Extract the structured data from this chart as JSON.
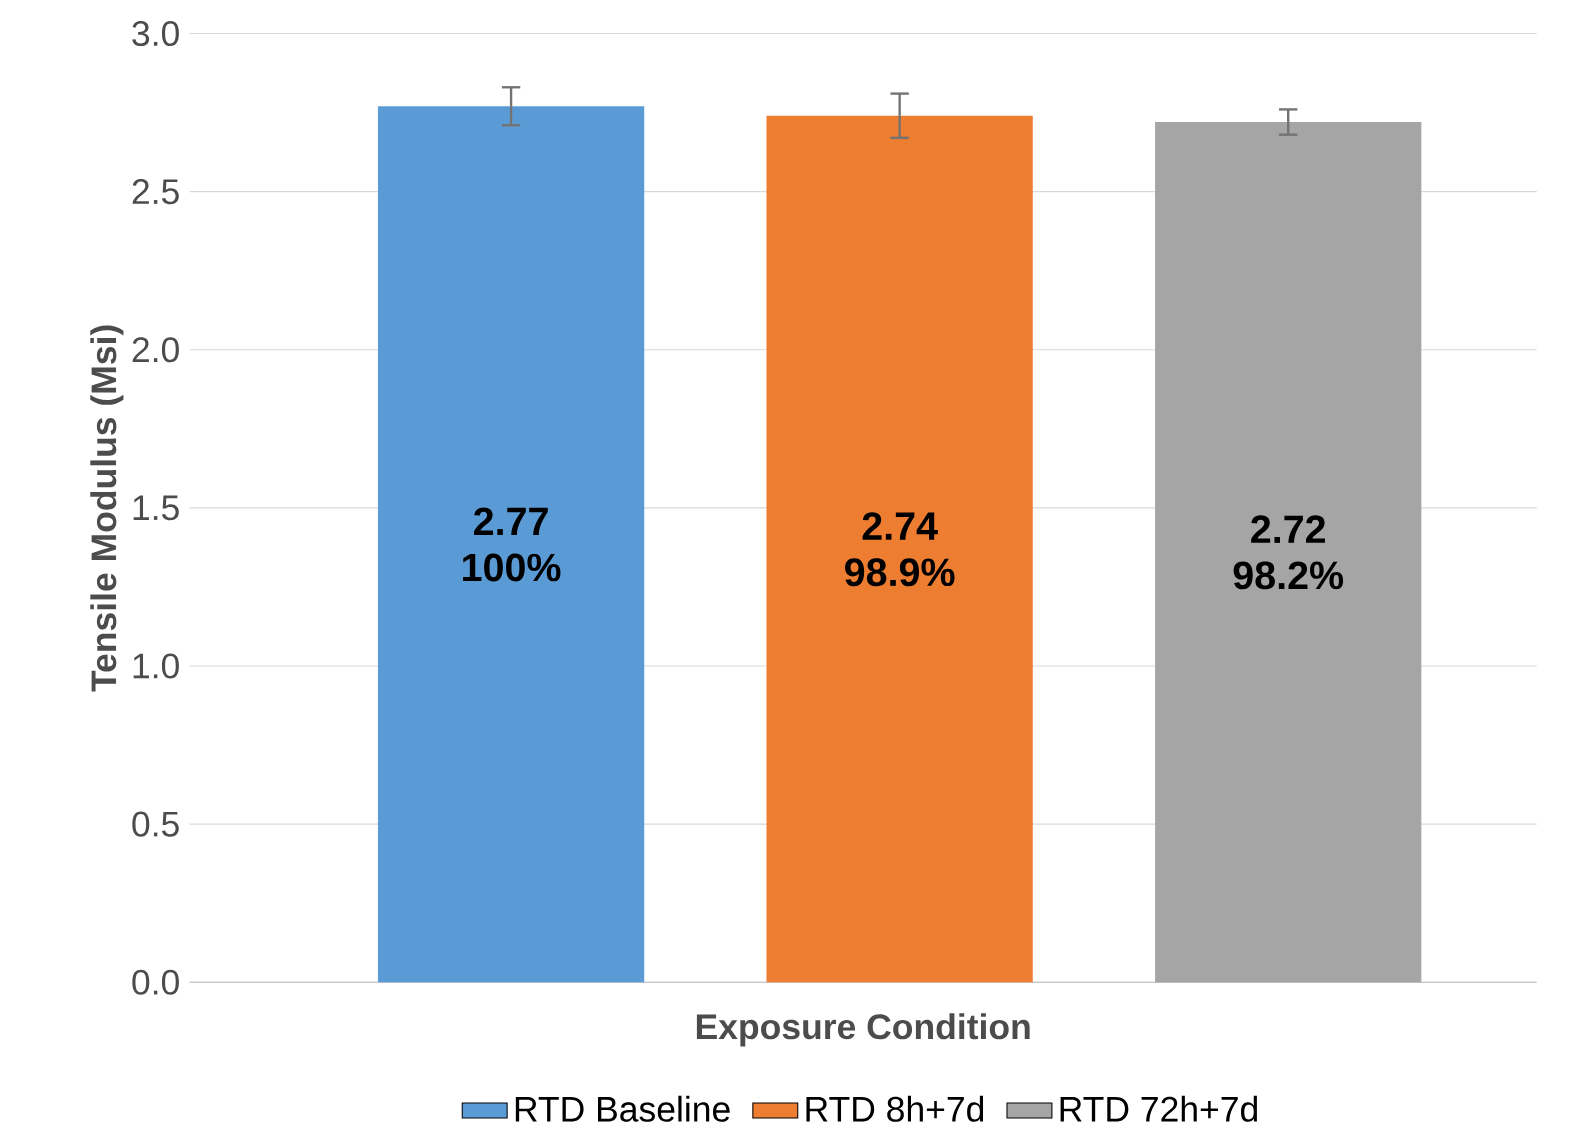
{
  "chart_data": {
    "type": "bar",
    "xlabel": "Exposure Condition",
    "ylabel": "Tensile Modulus (Msi)",
    "categories": [
      null,
      null,
      null
    ],
    "series": [
      {
        "name": "RTD Baseline",
        "color": "#5b9bd5",
        "values": [
          2.77,
          null,
          null
        ],
        "errors": [
          0.06,
          null,
          null
        ],
        "value_labels": [
          "2.77",
          null,
          null
        ]
      },
      {
        "name": "RTD 8h+7d",
        "color": "#ed7d31",
        "values": [
          null,
          2.74,
          null
        ],
        "errors": [
          null,
          0.07,
          null
        ],
        "value_labels": [
          null,
          "2.74",
          null
        ]
      },
      {
        "name": "RTD 72h+7d",
        "color": "#a5a5a5",
        "values": [
          null,
          null,
          2.72
        ],
        "errors": [
          null,
          null,
          0.04
        ],
        "value_labels": [
          null,
          null,
          "2.72"
        ]
      }
    ],
    "annotations": [
      "100%",
      "98.9%",
      "98.2%"
    ],
    "ylim": [
      0,
      3
    ],
    "yticks": [
      {
        "value": 0,
        "label": "0.0"
      },
      {
        "value": 0.5,
        "label": "0.5"
      },
      {
        "value": 1,
        "label": "1.0"
      },
      {
        "value": 1.5,
        "label": "1.5"
      },
      {
        "value": 2,
        "label": "2.0"
      },
      {
        "value": 2.5,
        "label": "2.5"
      },
      {
        "value": 3,
        "label": "3.0"
      }
    ],
    "grid": "y",
    "legend": "bottom"
  }
}
